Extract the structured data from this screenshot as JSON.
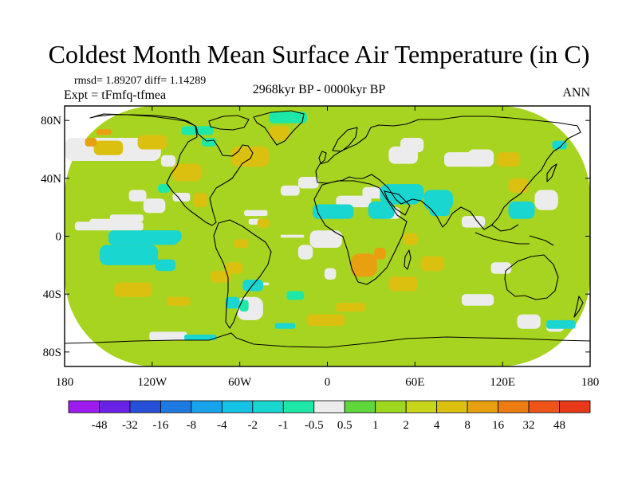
{
  "header": {
    "title": "Coldest Month Mean Surface Air Temperature (in C)",
    "stats": "rmsd= 1.89207 diff= 1.14289",
    "experiment": "Expt = tFmfq-tfmea",
    "period": "2968kyr BP - 0000kyr BP",
    "season": "ANN"
  },
  "chart_data": {
    "type": "heatmap",
    "title": "Coldest Month Mean Surface Air Temperature (in C)",
    "subtitle": "2968kyr BP - 0000kyr BP",
    "projection": "cylindrical equidistant",
    "xlim": [
      -180,
      180
    ],
    "ylim": [
      -90,
      90
    ],
    "x_ticks": [
      {
        "value": -180,
        "label": "180"
      },
      {
        "value": -120,
        "label": "120W"
      },
      {
        "value": -60,
        "label": "60W"
      },
      {
        "value": 0,
        "label": "0"
      },
      {
        "value": 60,
        "label": "60E"
      },
      {
        "value": 120,
        "label": "120E"
      },
      {
        "value": 180,
        "label": "180"
      }
    ],
    "y_ticks": [
      {
        "value": 80,
        "label": "80N"
      },
      {
        "value": 40,
        "label": "40N"
      },
      {
        "value": 0,
        "label": "0"
      },
      {
        "value": -40,
        "label": "40S"
      },
      {
        "value": -80,
        "label": "80S"
      }
    ],
    "colorbar": {
      "labels": [
        "-48",
        "-32",
        "-16",
        "-8",
        "-4",
        "-2",
        "-1",
        "-0.5",
        "0.5",
        "1",
        "2",
        "4",
        "8",
        "16",
        "32",
        "48"
      ],
      "colors": [
        "#9e1cf0",
        "#6a22e6",
        "#2650d8",
        "#1f7ae0",
        "#17a4ec",
        "#14c2e6",
        "#19d6d0",
        "#1de8a8",
        "#ececec",
        "#5ed63c",
        "#9ed81e",
        "#c8d61a",
        "#dcc010",
        "#e8a010",
        "#ec7c12",
        "#ee5418",
        "#e8381a"
      ]
    },
    "regions": [
      {
        "name": "background",
        "level": "1 to 2",
        "color": "#a7d420",
        "cells": [
          [
            -180,
            -90,
            360,
            180
          ]
        ]
      },
      {
        "name": "north-pacific-band-neutral",
        "level": "-0.5 to 0.5",
        "color": "#ececec",
        "cells": [
          [
            -180,
            52,
            66,
            16
          ],
          [
            -114,
            48,
            10,
            8
          ],
          [
            -173,
            4,
            47,
            6
          ],
          [
            -163,
            6,
            33,
            6
          ],
          [
            -149,
            10,
            23,
            5
          ]
        ]
      },
      {
        "name": "pacific-atlantic-neutral-patches",
        "level": "-0.5 to 0.5",
        "color": "#ececec",
        "cells": [
          [
            -136,
            24,
            12,
            8
          ],
          [
            -126,
            16,
            15,
            10
          ],
          [
            -106,
            24,
            12,
            6
          ],
          [
            -57,
            14,
            16,
            4
          ],
          [
            -54,
            8,
            12,
            4
          ],
          [
            -32,
            28,
            13,
            7
          ],
          [
            -20,
            33,
            14,
            8
          ],
          [
            -32,
            -1,
            16,
            2
          ],
          [
            -20,
            -16,
            10,
            10
          ],
          [
            -48,
            -34,
            8,
            2
          ],
          [
            -62,
            -58,
            18,
            16
          ]
        ]
      },
      {
        "name": "eastern-hemisphere-neutral",
        "level": "-0.5 to 0.5",
        "color": "#ececec",
        "cells": [
          [
            -12,
            -8,
            22,
            12
          ],
          [
            -2,
            -30,
            8,
            8
          ],
          [
            6,
            20,
            24,
            8
          ],
          [
            36,
            12,
            14,
            8
          ],
          [
            24,
            26,
            14,
            8
          ],
          [
            42,
            50,
            20,
            12
          ],
          [
            50,
            58,
            16,
            10
          ],
          [
            80,
            48,
            28,
            10
          ],
          [
            96,
            48,
            18,
            12
          ],
          [
            92,
            6,
            16,
            8
          ],
          [
            142,
            18,
            16,
            14
          ],
          [
            112,
            -26,
            14,
            8
          ],
          [
            130,
            -64,
            16,
            10
          ],
          [
            150,
            -66,
            12,
            8
          ],
          [
            92,
            -48,
            22,
            8
          ],
          [
            -122,
            -72,
            26,
            6
          ]
        ]
      },
      {
        "name": "cool-cyan-anomaly",
        "level": "-2 to -1",
        "color": "#19d6d0",
        "cells": [
          [
            -10,
            12,
            28,
            10
          ],
          [
            28,
            12,
            18,
            12
          ],
          [
            36,
            22,
            28,
            14
          ],
          [
            48,
            24,
            18,
            12
          ],
          [
            66,
            18,
            20,
            14
          ],
          [
            70,
            14,
            14,
            8
          ],
          [
            124,
            12,
            18,
            12
          ],
          [
            -150,
            -6,
            48,
            10
          ],
          [
            -130,
            -4,
            30,
            8
          ],
          [
            -156,
            -20,
            40,
            14
          ],
          [
            -118,
            -24,
            14,
            8
          ],
          [
            -58,
            -38,
            14,
            8
          ],
          [
            -70,
            -50,
            10,
            8
          ],
          [
            -36,
            -64,
            14,
            4
          ],
          [
            -98,
            -72,
            22,
            4
          ],
          [
            150,
            -64,
            20,
            6
          ],
          [
            154,
            60,
            10,
            6
          ]
        ]
      },
      {
        "name": "slight-cool-teal",
        "level": "-1 to -0.5",
        "color": "#1de8a8",
        "cells": [
          [
            -40,
            78,
            26,
            8
          ],
          [
            -100,
            70,
            22,
            6
          ],
          [
            -86,
            62,
            10,
            6
          ],
          [
            -116,
            30,
            8,
            6
          ],
          [
            -28,
            -44,
            12,
            6
          ],
          [
            -60,
            -52,
            6,
            8
          ]
        ]
      },
      {
        "name": "warm-yellow",
        "level": "4 to 8",
        "color": "#dcc010",
        "cells": [
          [
            -66,
            48,
            26,
            14
          ],
          [
            -40,
            66,
            14,
            10
          ],
          [
            -130,
            60,
            20,
            10
          ],
          [
            -106,
            38,
            20,
            12
          ],
          [
            -92,
            20,
            10,
            10
          ],
          [
            -160,
            56,
            20,
            10
          ],
          [
            -146,
            -42,
            26,
            10
          ],
          [
            -110,
            -48,
            16,
            6
          ],
          [
            -80,
            -32,
            14,
            8
          ],
          [
            -70,
            -26,
            12,
            8
          ],
          [
            -14,
            -62,
            26,
            8
          ],
          [
            6,
            -52,
            20,
            6
          ],
          [
            42,
            -38,
            20,
            10
          ],
          [
            64,
            -24,
            16,
            10
          ],
          [
            52,
            -6,
            10,
            8
          ],
          [
            116,
            48,
            16,
            10
          ],
          [
            124,
            30,
            14,
            10
          ],
          [
            -64,
            -8,
            10,
            6
          ],
          [
            -48,
            6,
            8,
            6
          ]
        ]
      },
      {
        "name": "strong-warm-orange",
        "level": "8 to 16",
        "color": "#e8a010",
        "cells": [
          [
            16,
            -28,
            18,
            16
          ],
          [
            32,
            -16,
            8,
            8
          ],
          [
            -166,
            62,
            8,
            6
          ],
          [
            -158,
            70,
            10,
            4
          ]
        ]
      }
    ]
  }
}
